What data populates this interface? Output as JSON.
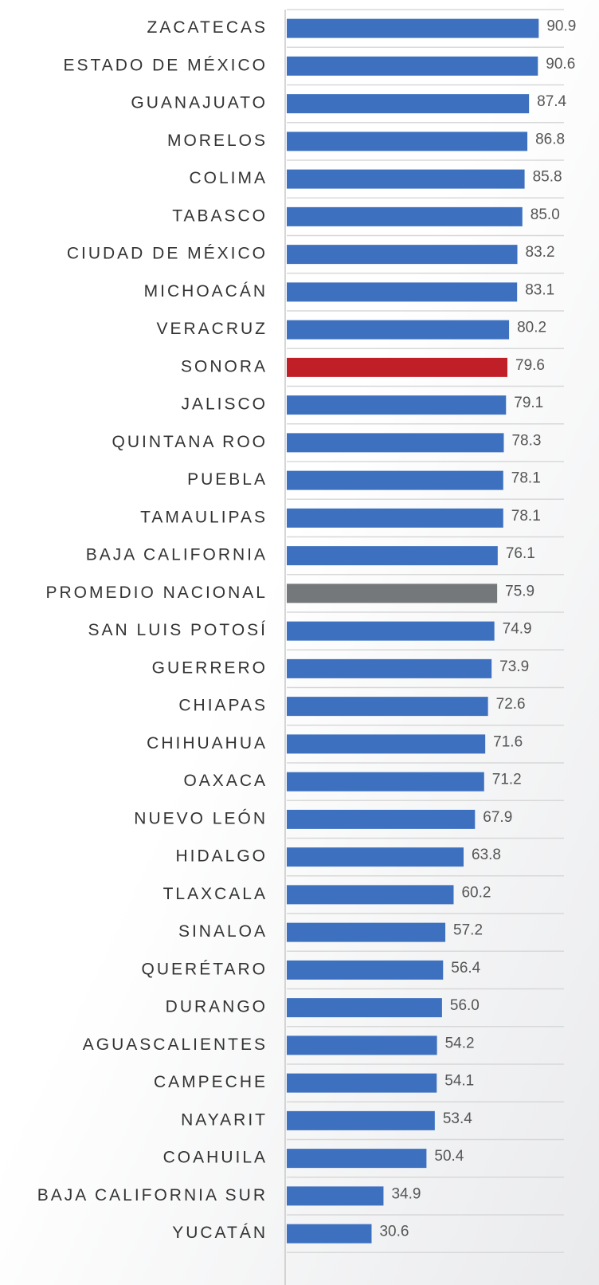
{
  "chart_data": {
    "type": "bar",
    "orientation": "horizontal",
    "categories": [
      "ZACATECAS",
      "ESTADO DE MÉXICO",
      "GUANAJUATO",
      "MORELOS",
      "COLIMA",
      "TABASCO",
      "CIUDAD DE MÉXICO",
      "MICHOACÁN",
      "VERACRUZ",
      "SONORA",
      "JALISCO",
      "QUINTANA ROO",
      "PUEBLA",
      "TAMAULIPAS",
      "BAJA CALIFORNIA",
      "PROMEDIO NACIONAL",
      "SAN LUIS POTOSÍ",
      "GUERRERO",
      "CHIAPAS",
      "CHIHUAHUA",
      "OAXACA",
      "NUEVO LEÓN",
      "HIDALGO",
      "TLAXCALA",
      "SINALOA",
      "QUERÉTARO",
      "DURANGO",
      "AGUASCALIENTES",
      "CAMPECHE",
      "NAYARIT",
      "COAHUILA",
      "BAJA CALIFORNIA SUR",
      "YUCATÁN"
    ],
    "values": [
      90.9,
      90.6,
      87.4,
      86.8,
      85.8,
      85,
      83.2,
      83.1,
      80.2,
      79.6,
      79.1,
      78.3,
      78.1,
      78.1,
      76.1,
      75.9,
      74.9,
      73.9,
      72.6,
      71.6,
      71.2,
      67.9,
      63.8,
      60.2,
      57.2,
      56.4,
      56,
      54.2,
      54.1,
      53.4,
      50.4,
      34.9,
      30.6
    ],
    "value_labels": [
      "90.9",
      "90.6",
      "87.4",
      "86.8",
      "85.8",
      "85.0",
      "83.2",
      "83.1",
      "80.2",
      "79.6",
      "79.1",
      "78.3",
      "78.1",
      "78.1",
      "76.1",
      "75.9",
      "74.9",
      "73.9",
      "72.6",
      "71.6",
      "71.2",
      "67.9",
      "63.8",
      "60.2",
      "57.2",
      "56.4",
      "56.0",
      "54.2",
      "54.1",
      "53.4",
      "50.4",
      "34.9",
      "30.6"
    ],
    "color": "#3d71bf",
    "colors": [
      "#3d71bf",
      "#3d71bf",
      "#3d71bf",
      "#3d71bf",
      "#3d71bf",
      "#3d71bf",
      "#3d71bf",
      "#3d71bf",
      "#3d71bf",
      "#c01f28",
      "#3d71bf",
      "#3d71bf",
      "#3d71bf",
      "#3d71bf",
      "#3d71bf",
      "#75787b",
      "#3d71bf",
      "#3d71bf",
      "#3d71bf",
      "#3d71bf",
      "#3d71bf",
      "#3d71bf",
      "#3d71bf",
      "#3d71bf",
      "#3d71bf",
      "#3d71bf",
      "#3d71bf",
      "#3d71bf",
      "#3d71bf",
      "#3d71bf",
      "#3d71bf",
      "#3d71bf",
      "#3d71bf"
    ]
  }
}
